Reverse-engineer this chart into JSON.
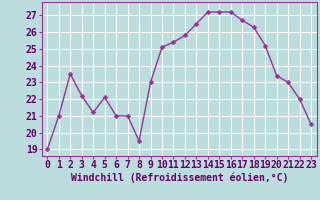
{
  "x": [
    0,
    1,
    2,
    3,
    4,
    5,
    6,
    7,
    8,
    9,
    10,
    11,
    12,
    13,
    14,
    15,
    16,
    17,
    18,
    19,
    20,
    21,
    22,
    23
  ],
  "y": [
    19.0,
    21.0,
    23.5,
    22.2,
    21.2,
    22.1,
    21.0,
    21.0,
    19.5,
    23.0,
    25.1,
    25.4,
    25.8,
    26.5,
    27.2,
    27.2,
    27.2,
    26.7,
    26.3,
    25.2,
    23.4,
    23.0,
    22.0,
    20.5
  ],
  "line_color": "#993399",
  "marker_color": "#993399",
  "bg_color": "#bbdddd",
  "grid_color": "#ffffff",
  "xlabel": "Windchill (Refroidissement éolien,°C)",
  "ylabel_ticks": [
    19,
    20,
    21,
    22,
    23,
    24,
    25,
    26,
    27
  ],
  "xlim": [
    -0.5,
    23.5
  ],
  "ylim": [
    18.6,
    27.8
  ],
  "xtick_labels": [
    "0",
    "1",
    "2",
    "3",
    "4",
    "5",
    "6",
    "7",
    "8",
    "9",
    "10",
    "11",
    "12",
    "13",
    "14",
    "15",
    "16",
    "17",
    "18",
    "19",
    "20",
    "21",
    "22",
    "23"
  ],
  "font_size_xlabel": 7,
  "font_size_ticks": 7,
  "line_width": 1.0,
  "marker_size": 2.5
}
